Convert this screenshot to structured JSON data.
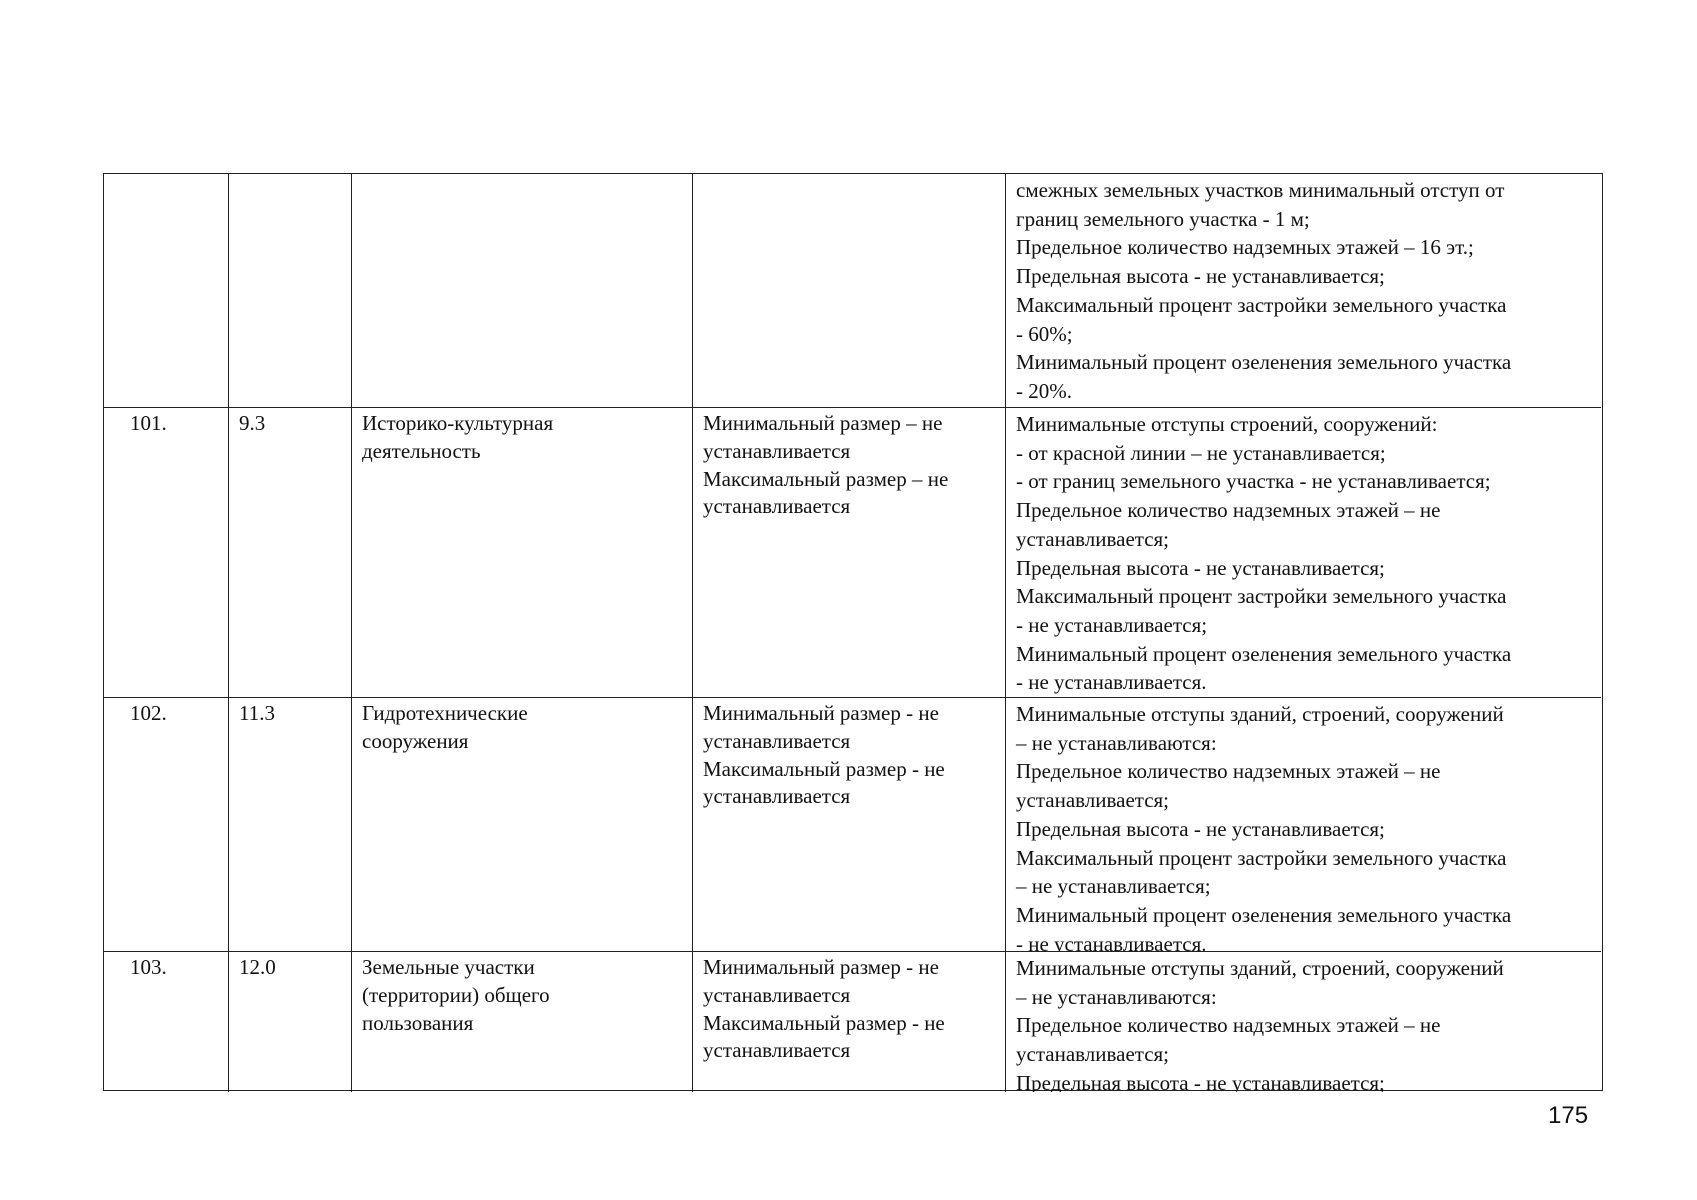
{
  "page_number": "175",
  "rows": [
    {
      "cells": [
        [],
        [],
        [],
        [],
        [
          "смежных земельных участков минимальный отступ от",
          "границ земельного участка - 1 м;",
          "Предельное количество надземных этажей – 16 эт.;",
          "Предельная высота - не устанавливается;",
          "Максимальный процент застройки земельного участка",
          "- 60%;",
          "Минимальный процент озеленения земельного участка",
          "- 20%."
        ]
      ]
    },
    {
      "cells": [
        [
          "101."
        ],
        [
          "9.3"
        ],
        [
          "Историко-культурная",
          "деятельность"
        ],
        [
          "Минимальный размер – не",
          "устанавливается",
          "Максимальный размер – не",
          "устанавливается"
        ],
        [
          "Минимальные отступы строений, сооружений:",
          "- от красной линии – не устанавливается;",
          "- от границ земельного участка - не устанавливается;",
          "Предельное количество надземных этажей – не",
          "устанавливается;",
          "Предельная высота - не устанавливается;",
          "Максимальный процент застройки земельного участка",
          "- не устанавливается;",
          "Минимальный процент озеленения земельного участка",
          "- не устанавливается."
        ]
      ]
    },
    {
      "cells": [
        [
          "102."
        ],
        [
          "11.3"
        ],
        [
          "Гидротехнические",
          "сооружения"
        ],
        [
          "Минимальный размер - не",
          "устанавливается",
          "Максимальный размер - не",
          "устанавливается"
        ],
        [
          "Минимальные отступы зданий, строений, сооружений",
          "– не устанавливаются:",
          "Предельное количество надземных этажей – не",
          "устанавливается;",
          "Предельная высота - не устанавливается;",
          "Максимальный процент застройки земельного участка",
          "– не устанавливается;",
          "Минимальный процент озеленения земельного участка",
          "- не устанавливается."
        ]
      ]
    },
    {
      "cells": [
        [
          "103."
        ],
        [
          "12.0"
        ],
        [
          "Земельные участки",
          "(территории) общего",
          "пользования"
        ],
        [
          "Минимальный размер - не",
          "устанавливается",
          "Максимальный размер - не",
          "устанавливается"
        ],
        [
          "Минимальные отступы зданий, строений, сооружений",
          "– не устанавливаются:",
          "Предельное количество надземных этажей – не",
          "устанавливается;",
          "Предельная высота - не устанавливается;"
        ]
      ]
    }
  ]
}
